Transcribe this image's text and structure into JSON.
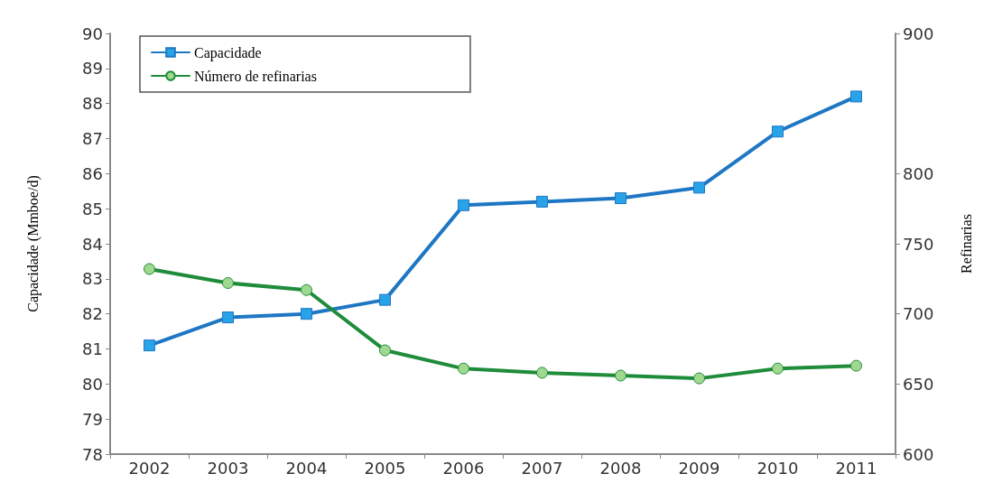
{
  "chart_data": {
    "type": "line",
    "categories": [
      "2002",
      "2003",
      "2004",
      "2005",
      "2006",
      "2007",
      "2008",
      "2009",
      "2010",
      "2011"
    ],
    "ylabel": "Capacidade (Mmboe/d)",
    "y2label": "Refinarias",
    "series": [
      {
        "name": "Capacidade",
        "color": "#1f77c4",
        "marker": "square",
        "values": [
          81.1,
          81.9,
          82.0,
          82.4,
          85.1,
          85.2,
          85.3,
          85.6,
          87.2,
          88.2
        ]
      },
      {
        "name": "Número de refinarias",
        "color": "#1e8c3a",
        "marker": "circle",
        "axis": "y2",
        "values": [
          732,
          722,
          717,
          674,
          661,
          658,
          656,
          654,
          661,
          663
        ]
      }
    ],
    "ylim": [
      78,
      90
    ],
    "yticks": [
      78,
      79,
      80,
      81,
      82,
      83,
      84,
      85,
      86,
      87,
      88,
      89,
      90
    ],
    "y2lim": [
      600,
      900
    ],
    "y2ticks": [
      600,
      650,
      700,
      750,
      800,
      900
    ],
    "grid": false,
    "legend": "top left",
    "line_style": "solid"
  }
}
